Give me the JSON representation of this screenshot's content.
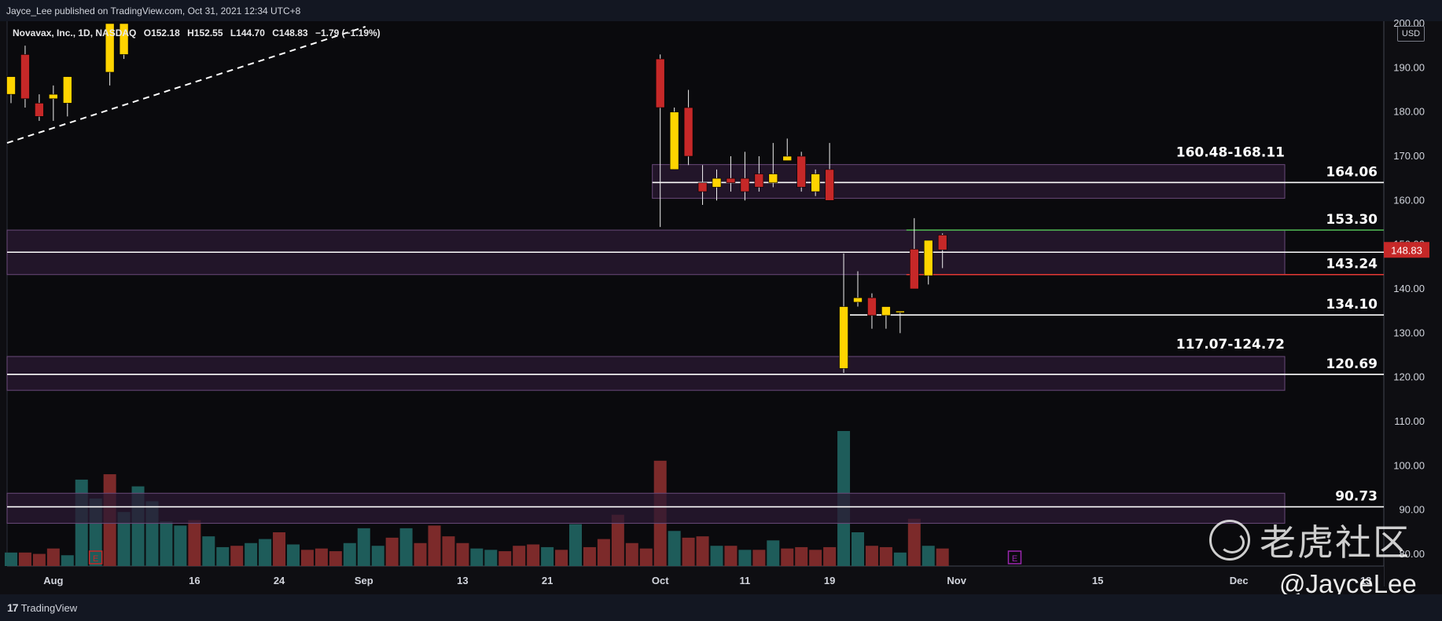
{
  "publisher_line": "Jayce_Lee published on TradingView.com, Oct 31, 2021 12:34 UTC+8",
  "symbol": {
    "name": "Novavax, Inc., 1D, NASDAQ",
    "open": "O152.18",
    "high": "H152.55",
    "low": "L144.70",
    "close": "C148.83",
    "change": "−1.79 (−1.19%)"
  },
  "currency": "USD",
  "brand": "TradingView",
  "watermark_cn": "老虎社区",
  "watermark_handle": "@JayceLee",
  "colors": {
    "background": "#0e0e12",
    "up_candle": "#ffd400",
    "down_candle": "#c62828",
    "volume_up": "#1e5c5a",
    "volume_down": "#7c2a2a",
    "zone_fill": "#2b1a33",
    "zone_border": "#6a4a7a",
    "price_tag": "#c62828",
    "green_line": "#4caf50",
    "red_line": "#e53935"
  },
  "chart_data": {
    "type": "candlestick",
    "title": "Novavax, Inc., 1D, NASDAQ",
    "y_range": [
      77,
      201
    ],
    "y_ticks": [
      200,
      190,
      180,
      170,
      160,
      150,
      140,
      130,
      120,
      110,
      100,
      90,
      80
    ],
    "y_tick_labels": [
      "200.00",
      "190.00",
      "180.00",
      "170.00",
      "160.00",
      "150.00",
      "140.00",
      "130.00",
      "120.00",
      "110.00",
      "100.00",
      "90.00",
      "80.00"
    ],
    "last_price": "148.83",
    "x_labels": [
      {
        "label": "Aug",
        "index": 3
      },
      {
        "label": "16",
        "index": 13
      },
      {
        "label": "24",
        "index": 19
      },
      {
        "label": "Sep",
        "index": 25
      },
      {
        "label": "13",
        "index": 32
      },
      {
        "label": "21",
        "index": 38
      },
      {
        "label": "Oct",
        "index": 46
      },
      {
        "label": "11",
        "index": 52
      },
      {
        "label": "19",
        "index": 58
      },
      {
        "label": "Nov",
        "index": 67
      },
      {
        "label": "15",
        "index": 77
      },
      {
        "label": "Dec",
        "index": 87
      },
      {
        "label": "13",
        "index": 96
      }
    ],
    "candles": [
      {
        "i": 0,
        "o": 184,
        "h": 187,
        "l": 182,
        "c": 188
      },
      {
        "i": 1,
        "o": 193,
        "h": 195,
        "l": 181,
        "c": 183
      },
      {
        "i": 2,
        "o": 182,
        "h": 184,
        "l": 178,
        "c": 179
      },
      {
        "i": 3,
        "o": 183,
        "h": 186,
        "l": 178,
        "c": 184
      },
      {
        "i": 4,
        "o": 182,
        "h": 188,
        "l": 179,
        "c": 188
      },
      {
        "i": 7,
        "o": 189,
        "h": 200,
        "l": 186,
        "c": 200
      },
      {
        "i": 8,
        "o": 193,
        "h": 200,
        "l": 192,
        "c": 200
      },
      {
        "i": 46,
        "o": 192,
        "h": 193,
        "l": 154,
        "c": 181
      },
      {
        "i": 47,
        "o": 167,
        "h": 181,
        "l": 167,
        "c": 180
      },
      {
        "i": 48,
        "o": 181,
        "h": 185,
        "l": 168,
        "c": 170
      },
      {
        "i": 49,
        "o": 164,
        "h": 168,
        "l": 159,
        "c": 162
      },
      {
        "i": 50,
        "o": 163,
        "h": 167,
        "l": 160,
        "c": 165
      },
      {
        "i": 51,
        "o": 165,
        "h": 170,
        "l": 162,
        "c": 164
      },
      {
        "i": 52,
        "o": 165,
        "h": 171,
        "l": 160,
        "c": 162
      },
      {
        "i": 53,
        "o": 166,
        "h": 170,
        "l": 162,
        "c": 163
      },
      {
        "i": 54,
        "o": 164,
        "h": 173,
        "l": 163,
        "c": 166
      },
      {
        "i": 55,
        "o": 169,
        "h": 174,
        "l": 169,
        "c": 170
      },
      {
        "i": 56,
        "o": 170,
        "h": 171,
        "l": 162,
        "c": 163
      },
      {
        "i": 57,
        "o": 162,
        "h": 167,
        "l": 161,
        "c": 166
      },
      {
        "i": 58,
        "o": 167,
        "h": 173,
        "l": 160,
        "c": 160
      },
      {
        "i": 59,
        "o": 122,
        "h": 148,
        "l": 121,
        "c": 136
      },
      {
        "i": 60,
        "o": 137,
        "h": 144,
        "l": 136,
        "c": 138
      },
      {
        "i": 61,
        "o": 138,
        "h": 139,
        "l": 131,
        "c": 134
      },
      {
        "i": 62,
        "o": 134,
        "h": 135,
        "l": 131,
        "c": 136
      },
      {
        "i": 63,
        "o": 135,
        "h": 135,
        "l": 130,
        "c": 135
      },
      {
        "i": 64,
        "o": 149,
        "h": 156,
        "l": 140,
        "c": 140
      },
      {
        "i": 65,
        "o": 143,
        "h": 151,
        "l": 141,
        "c": 151
      },
      {
        "i": 66,
        "o": 152.18,
        "h": 152.55,
        "l": 144.7,
        "c": 148.83
      }
    ],
    "volume": {
      "scale_max": 100,
      "bars": [
        {
          "i": 0,
          "v": 10,
          "up": true
        },
        {
          "i": 1,
          "v": 10,
          "up": false
        },
        {
          "i": 2,
          "v": 9,
          "up": false
        },
        {
          "i": 3,
          "v": 13,
          "up": false
        },
        {
          "i": 4,
          "v": 8,
          "up": true
        },
        {
          "i": 5,
          "v": 64,
          "up": true
        },
        {
          "i": 6,
          "v": 50,
          "up": true
        },
        {
          "i": 7,
          "v": 68,
          "up": false
        },
        {
          "i": 8,
          "v": 40,
          "up": true
        },
        {
          "i": 9,
          "v": 59,
          "up": true
        },
        {
          "i": 10,
          "v": 48,
          "up": true
        },
        {
          "i": 11,
          "v": 33,
          "up": true
        },
        {
          "i": 12,
          "v": 30,
          "up": true
        },
        {
          "i": 13,
          "v": 34,
          "up": false
        },
        {
          "i": 14,
          "v": 22,
          "up": true
        },
        {
          "i": 15,
          "v": 14,
          "up": true
        },
        {
          "i": 16,
          "v": 15,
          "up": false
        },
        {
          "i": 17,
          "v": 17,
          "up": true
        },
        {
          "i": 18,
          "v": 20,
          "up": true
        },
        {
          "i": 19,
          "v": 25,
          "up": false
        },
        {
          "i": 20,
          "v": 16,
          "up": true
        },
        {
          "i": 21,
          "v": 12,
          "up": false
        },
        {
          "i": 22,
          "v": 13,
          "up": false
        },
        {
          "i": 23,
          "v": 11,
          "up": false
        },
        {
          "i": 24,
          "v": 17,
          "up": true
        },
        {
          "i": 25,
          "v": 28,
          "up": true
        },
        {
          "i": 26,
          "v": 15,
          "up": true
        },
        {
          "i": 27,
          "v": 21,
          "up": false
        },
        {
          "i": 28,
          "v": 28,
          "up": true
        },
        {
          "i": 29,
          "v": 17,
          "up": false
        },
        {
          "i": 30,
          "v": 30,
          "up": false
        },
        {
          "i": 31,
          "v": 22,
          "up": false
        },
        {
          "i": 32,
          "v": 17,
          "up": false
        },
        {
          "i": 33,
          "v": 13,
          "up": true
        },
        {
          "i": 34,
          "v": 12,
          "up": true
        },
        {
          "i": 35,
          "v": 11,
          "up": false
        },
        {
          "i": 36,
          "v": 15,
          "up": false
        },
        {
          "i": 37,
          "v": 16,
          "up": false
        },
        {
          "i": 38,
          "v": 14,
          "up": true
        },
        {
          "i": 39,
          "v": 12,
          "up": false
        },
        {
          "i": 40,
          "v": 31,
          "up": true
        },
        {
          "i": 41,
          "v": 14,
          "up": false
        },
        {
          "i": 42,
          "v": 20,
          "up": false
        },
        {
          "i": 43,
          "v": 38,
          "up": false
        },
        {
          "i": 44,
          "v": 17,
          "up": false
        },
        {
          "i": 45,
          "v": 13,
          "up": false
        },
        {
          "i": 46,
          "v": 78,
          "up": false
        },
        {
          "i": 47,
          "v": 26,
          "up": true
        },
        {
          "i": 48,
          "v": 21,
          "up": false
        },
        {
          "i": 49,
          "v": 22,
          "up": false
        },
        {
          "i": 50,
          "v": 15,
          "up": true
        },
        {
          "i": 51,
          "v": 15,
          "up": false
        },
        {
          "i": 52,
          "v": 12,
          "up": true
        },
        {
          "i": 53,
          "v": 12,
          "up": false
        },
        {
          "i": 54,
          "v": 19,
          "up": true
        },
        {
          "i": 55,
          "v": 13,
          "up": false
        },
        {
          "i": 56,
          "v": 14,
          "up": false
        },
        {
          "i": 57,
          "v": 12,
          "up": false
        },
        {
          "i": 58,
          "v": 14,
          "up": false
        },
        {
          "i": 59,
          "v": 100,
          "up": true
        },
        {
          "i": 60,
          "v": 25,
          "up": true
        },
        {
          "i": 61,
          "v": 15,
          "up": false
        },
        {
          "i": 62,
          "v": 14,
          "up": false
        },
        {
          "i": 63,
          "v": 10,
          "up": true
        },
        {
          "i": 64,
          "v": 35,
          "up": false
        },
        {
          "i": 65,
          "v": 15,
          "up": true
        },
        {
          "i": 66,
          "v": 13,
          "up": false
        }
      ]
    },
    "zones": [
      {
        "name": "zone-160-168",
        "low": 160.48,
        "high": 168.11,
        "start_index": 46,
        "label": "160.48-168.11"
      },
      {
        "name": "zone-143-153",
        "low": 143.24,
        "high": 153.3,
        "start_index": 0,
        "label": ""
      },
      {
        "name": "zone-117-124",
        "low": 117.07,
        "high": 124.72,
        "start_index": 0,
        "label": "117.07-124.72"
      },
      {
        "name": "zone-87-94",
        "low": 87,
        "high": 93.8,
        "start_index": 0,
        "label": ""
      }
    ],
    "levels": [
      {
        "name": "level-164",
        "value": 164.06,
        "label": "164.06",
        "start_index": 47,
        "color": "white"
      },
      {
        "name": "level-153",
        "value": 153.3,
        "label": "153.30",
        "start_index": 64,
        "color": "green"
      },
      {
        "name": "level-148",
        "value": 148.3,
        "label": "",
        "start_index": 0,
        "color": "white"
      },
      {
        "name": "level-143",
        "value": 143.24,
        "label": "143.24",
        "start_index": 64,
        "color": "red"
      },
      {
        "name": "level-134",
        "value": 134.1,
        "label": "134.10",
        "start_index": 60,
        "color": "white"
      },
      {
        "name": "level-120",
        "value": 120.69,
        "label": "120.69",
        "start_index": 0,
        "color": "white"
      },
      {
        "name": "level-90",
        "value": 90.73,
        "label": "90.73",
        "start_index": 0,
        "color": "white"
      }
    ],
    "trendline": {
      "from": {
        "index": 0,
        "value": 173
      },
      "to": {
        "index": 24,
        "value": 200
      },
      "style": "dashed"
    },
    "earnings_markers": [
      {
        "index": 6,
        "label": "E",
        "color": "#c62828"
      },
      {
        "index": 70,
        "label": "E",
        "color": "#9c27b0"
      }
    ]
  }
}
